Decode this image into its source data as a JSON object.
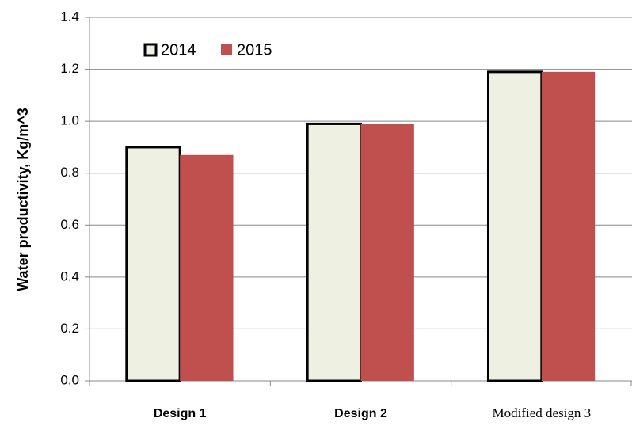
{
  "chart_data": {
    "type": "bar",
    "y_label": "Water productivity, Kg/m^3",
    "categories": [
      "Design 1",
      "Design 2",
      "Modified design 3"
    ],
    "series": [
      {
        "name": "2014",
        "color": "#eef1e1",
        "values": [
          0.9,
          0.99,
          1.19
        ]
      },
      {
        "name": "2015",
        "color": "#c0504d",
        "values": [
          0.87,
          0.99,
          1.19
        ]
      }
    ],
    "ylim": [
      0,
      1.4
    ],
    "yticks": [
      {
        "value": 0,
        "label": "0.0"
      },
      0.2,
      0.4,
      0.6,
      0.8,
      {
        "value": 1,
        "label": "1.0"
      },
      1.2,
      1.4
    ],
    "grid": true,
    "legend": "top-left"
  }
}
